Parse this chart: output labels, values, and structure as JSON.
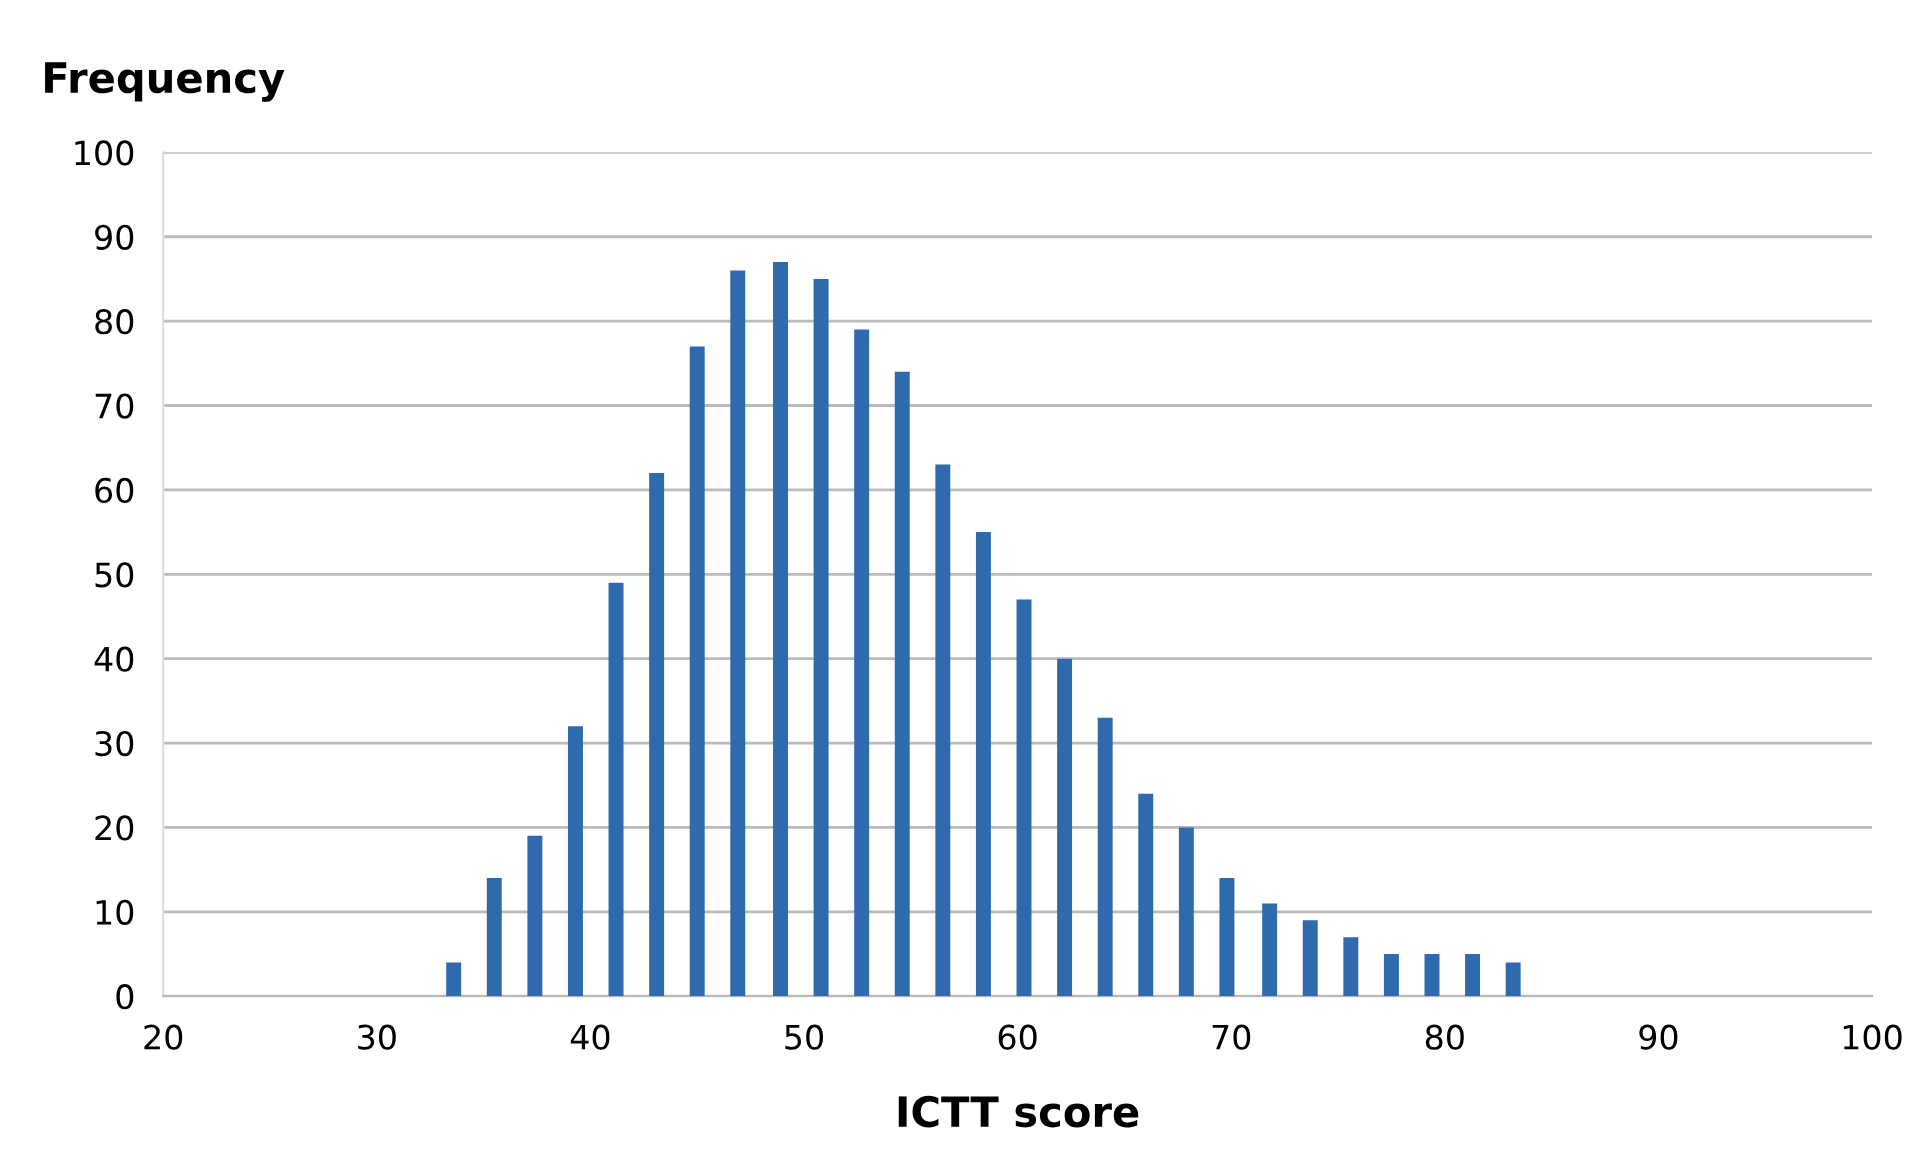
{
  "chart_data": {
    "type": "bar",
    "ylabel": "Frequency",
    "xlabel": "ICTT score",
    "x": [
      33.6,
      35.5,
      37.4,
      39.3,
      41.2,
      43.1,
      45.0,
      46.9,
      48.9,
      50.8,
      52.7,
      54.6,
      56.5,
      58.4,
      60.3,
      62.2,
      64.1,
      66.0,
      67.9,
      69.8,
      71.8,
      73.7,
      75.6,
      77.5,
      79.4,
      81.3,
      83.2
    ],
    "values": [
      4,
      14,
      19,
      32,
      49,
      62,
      77,
      86,
      87,
      85,
      79,
      74,
      63,
      55,
      47,
      40,
      33,
      24,
      20,
      14,
      11,
      9,
      7,
      5,
      5,
      5,
      4
    ],
    "color": "#2e6aad",
    "xlim": [
      20,
      100
    ],
    "xticks": [
      20,
      30,
      40,
      50,
      60,
      70,
      80,
      90,
      100
    ],
    "ylim": [
      0,
      100
    ],
    "yticks": [
      0,
      10,
      20,
      30,
      40,
      50,
      60,
      70,
      80,
      90,
      100
    ],
    "grid": "y"
  }
}
